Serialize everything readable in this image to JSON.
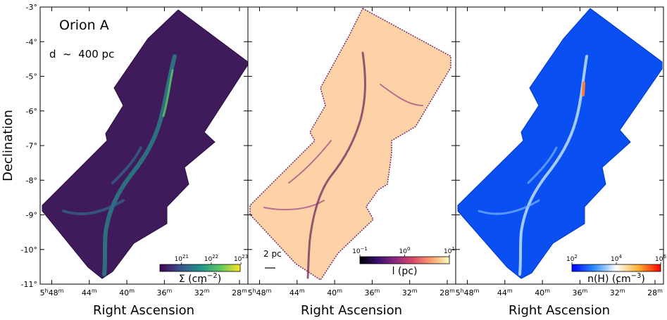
{
  "figure": {
    "ylabel": "Declination",
    "xlabel": "Right Ascension",
    "yticks": [
      "-3°",
      "-4°",
      "-5°",
      "-6°",
      "-7°",
      "-8°",
      "-9°",
      "-10°",
      "-11°"
    ],
    "xticks": [
      {
        "h": "5",
        "hs": "h",
        "m": "48",
        "ms": "m"
      },
      {
        "h": "",
        "hs": "",
        "m": "44",
        "ms": "m"
      },
      {
        "h": "",
        "hs": "",
        "m": "40",
        "ms": "m"
      },
      {
        "h": "",
        "hs": "",
        "m": "36",
        "ms": "m"
      },
      {
        "h": "",
        "hs": "",
        "m": "32",
        "ms": "m"
      },
      {
        "h": "",
        "hs": "",
        "m": "28",
        "ms": "m"
      }
    ]
  },
  "chart_data": [
    {
      "type": "heatmap",
      "region_label": "Orion A",
      "distance_label": "d  ~  400 pc",
      "colorbar": {
        "label": "Σ (cm",
        "label_exp": "−2",
        "label_end": ")",
        "ticks": [
          {
            "base": "10",
            "exp": "21"
          },
          {
            "base": "10",
            "exp": "22"
          },
          {
            "base": "10",
            "exp": "23"
          }
        ],
        "colors": [
          "#440154",
          "#3b528b",
          "#21918c",
          "#5ec962",
          "#fde725"
        ]
      },
      "background_color": "#3e1a5c",
      "filament_color": "#2a8c8a",
      "ylim_deg": [
        -11,
        -3
      ],
      "xlim_ra_min": [
        50,
        25
      ]
    },
    {
      "type": "heatmap",
      "scalebar_label": "2 pc",
      "colorbar": {
        "label": "l (pc)",
        "label_exp": "",
        "label_end": "",
        "ticks": [
          {
            "base": "10",
            "exp": "−1"
          },
          {
            "base": "10",
            "exp": "0"
          },
          {
            "base": "10",
            "exp": "1"
          }
        ],
        "colors": [
          "#000004",
          "#3b0f70",
          "#8c2981",
          "#de4968",
          "#fe9f6d",
          "#fcfdbf"
        ]
      },
      "background_color": "#fbd1a4",
      "filament_color": "#6a1c5a",
      "ylim_deg": [
        -11,
        -3
      ],
      "xlim_ra_min": [
        50,
        25
      ]
    },
    {
      "type": "heatmap",
      "colorbar": {
        "label": "n(H) (cm",
        "label_exp": "−3",
        "label_end": ")",
        "ticks": [
          {
            "base": "10",
            "exp": "2"
          },
          {
            "base": "10",
            "exp": "4"
          },
          {
            "base": "10",
            "exp": "6"
          }
        ],
        "colors": [
          "#0000ff",
          "#2a8cff",
          "#ffffff",
          "#ffb030",
          "#ff0000"
        ]
      },
      "background_color": "#0a4ff2",
      "filament_color": "#cfe8ff",
      "ylim_deg": [
        -11,
        -3
      ],
      "xlim_ra_min": [
        50,
        25
      ]
    }
  ]
}
